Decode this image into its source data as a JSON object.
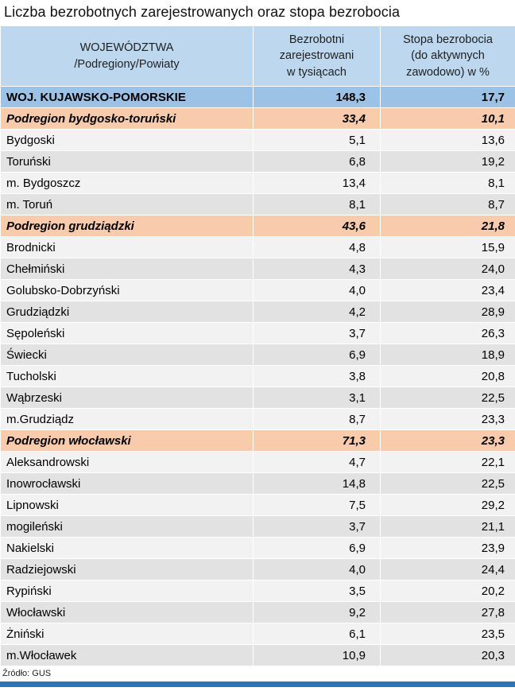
{
  "title": "Liczba bezrobotnych zarejestrowanych oraz stopa bezrobocia",
  "table": {
    "headers": [
      "WOJEWÓDZTWA\n/Podregiony/Powiaty",
      "Bezrobotni\nzarejestrowani\nw tysiącach",
      "Stopa bezrobocia\n(do aktywnych\nzawodowo) w %"
    ],
    "rows": [
      {
        "name": "WOJ. KUJAWSKO-POMORSKIE",
        "unemployed": "148,3",
        "rate": "17,7",
        "type": "voivodeship"
      },
      {
        "name": "Podregion bydgosko-toruński",
        "unemployed": "33,4",
        "rate": "10,1",
        "type": "subregion"
      },
      {
        "name": "Bydgoski",
        "unemployed": "5,1",
        "rate": "13,6",
        "type": "powiat"
      },
      {
        "name": "Toruński",
        "unemployed": "6,8",
        "rate": "19,2",
        "type": "powiat"
      },
      {
        "name": "m. Bydgoszcz",
        "unemployed": "13,4",
        "rate": "8,1",
        "type": "powiat"
      },
      {
        "name": "m. Toruń",
        "unemployed": "8,1",
        "rate": "8,7",
        "type": "powiat"
      },
      {
        "name": "Podregion grudziądzki",
        "unemployed": "43,6",
        "rate": "21,8",
        "type": "subregion"
      },
      {
        "name": "Brodnicki",
        "unemployed": "4,8",
        "rate": "15,9",
        "type": "powiat"
      },
      {
        "name": "Chełmiński",
        "unemployed": "4,3",
        "rate": "24,0",
        "type": "powiat"
      },
      {
        "name": "Golubsko-Dobrzyński",
        "unemployed": "4,0",
        "rate": "23,4",
        "type": "powiat"
      },
      {
        "name": "Grudziądzki",
        "unemployed": "4,2",
        "rate": "28,9",
        "type": "powiat"
      },
      {
        "name": "Sępoleński",
        "unemployed": "3,7",
        "rate": "26,3",
        "type": "powiat"
      },
      {
        "name": "Świecki",
        "unemployed": "6,9",
        "rate": "18,9",
        "type": "powiat"
      },
      {
        "name": "Tucholski",
        "unemployed": "3,8",
        "rate": "20,8",
        "type": "powiat"
      },
      {
        "name": "Wąbrzeski",
        "unemployed": "3,1",
        "rate": "22,5",
        "type": "powiat"
      },
      {
        "name": "m.Grudziądz",
        "unemployed": "8,7",
        "rate": "23,3",
        "type": "powiat"
      },
      {
        "name": "Podregion włocławski",
        "unemployed": "71,3",
        "rate": "23,3",
        "type": "subregion"
      },
      {
        "name": "Aleksandrowski",
        "unemployed": "4,7",
        "rate": "22,1",
        "type": "powiat"
      },
      {
        "name": "Inowrocławski",
        "unemployed": "14,8",
        "rate": "22,5",
        "type": "powiat"
      },
      {
        "name": "Lipnowski",
        "unemployed": "7,5",
        "rate": "29,2",
        "type": "powiat"
      },
      {
        "name": "mogileński",
        "unemployed": "3,7",
        "rate": "21,1",
        "type": "powiat"
      },
      {
        "name": "Nakielski",
        "unemployed": "6,9",
        "rate": "23,9",
        "type": "powiat"
      },
      {
        "name": "Radziejowski",
        "unemployed": "4,0",
        "rate": "24,4",
        "type": "powiat"
      },
      {
        "name": "Rypiński",
        "unemployed": "3,5",
        "rate": "20,2",
        "type": "powiat"
      },
      {
        "name": "Włocławski",
        "unemployed": "9,2",
        "rate": "27,8",
        "type": "powiat"
      },
      {
        "name": "Żniński",
        "unemployed": "6,1",
        "rate": "23,5",
        "type": "powiat"
      },
      {
        "name": "m.Włocławek",
        "unemployed": "10,9",
        "rate": "20,3",
        "type": "powiat"
      }
    ]
  },
  "footer": {
    "source": "Źródło: GUS"
  },
  "colors": {
    "header_blue": "#BDD7EE",
    "voivodeship_blue": "#9CC2E5",
    "subregion_orange": "#F8CBAD",
    "stripe_light": "#F2F2F2",
    "stripe_dark": "#E2E2E2",
    "bottom_bar_blue": "#2E74B5"
  }
}
